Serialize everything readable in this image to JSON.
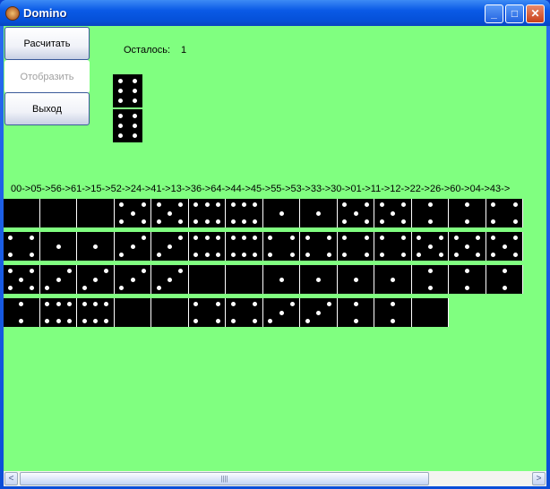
{
  "window": {
    "title": "Domino",
    "minimize": "_",
    "maximize": "□",
    "close": "✕"
  },
  "buttons": {
    "calculate": "Расчитать",
    "display": "Отобразить",
    "exit": "Выход"
  },
  "remaining": {
    "label": "Осталось:",
    "value": "1"
  },
  "current_domino": [
    6,
    6
  ],
  "chain": "00->05->56->61->15->52->24->41->13->36->64->44->45->55->53->33->30->01->11->12->22->26->60->04->43->",
  "rows": [
    [
      0,
      0,
      0,
      5,
      5,
      6,
      6,
      1,
      1,
      5,
      5,
      2,
      2,
      4
    ],
    [
      4,
      1,
      1,
      3,
      3,
      6,
      6,
      4,
      4,
      4,
      4,
      5,
      5,
      5
    ],
    [
      5,
      3,
      3,
      3,
      3,
      0,
      0,
      1,
      1,
      1,
      1,
      2,
      2,
      2
    ],
    [
      2,
      6,
      6,
      0,
      0,
      4,
      4,
      3,
      3,
      2,
      2,
      0
    ]
  ],
  "scrollbar": {
    "left": "<",
    "right": ">",
    "grip": "||||"
  }
}
